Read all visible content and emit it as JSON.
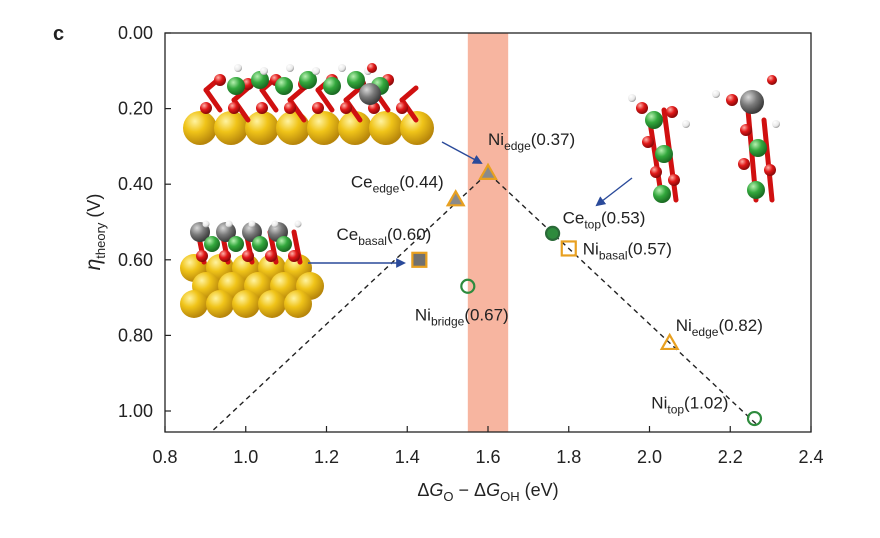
{
  "panel_label": "c",
  "chart_data": {
    "type": "scatter",
    "xlabel_parts": {
      "d1": "Δ",
      "g1": "G",
      "s1": "O",
      "minus": " − Δ",
      "g2": "G",
      "s2": "OH",
      "unit": " (eV)"
    },
    "ylabel_parts": {
      "eta": "η",
      "sub": "theory",
      "unit": " (V)"
    },
    "xlim": [
      0.8,
      2.4
    ],
    "ylim": [
      0.0,
      1.05
    ],
    "y_inverted": true,
    "xticks": [
      "0.8",
      "1.0",
      "1.2",
      "1.4",
      "1.6",
      "1.8",
      "2.0",
      "2.2",
      "2.4"
    ],
    "yticks": [
      "0.00",
      "0.20",
      "0.40",
      "0.60",
      "0.80",
      "1.00"
    ],
    "xtick_values": [
      0.8,
      1.0,
      1.2,
      1.4,
      1.6,
      1.8,
      2.0,
      2.2,
      2.4
    ],
    "ytick_values": [
      0.0,
      0.2,
      0.4,
      0.6,
      0.8,
      1.0
    ],
    "volcano_line": [
      [
        0.92,
        1.05
      ],
      [
        1.6,
        0.37
      ],
      [
        2.27,
        1.04
      ]
    ],
    "highlight_band": {
      "x": [
        1.55,
        1.65
      ],
      "color": "#f7b5a0"
    },
    "points": [
      {
        "label_main": "Ni",
        "label_sub": "edge",
        "value": "(0.37)",
        "x": 1.6,
        "y": 0.37,
        "marker": "triangle",
        "fill": "#8a8a8a",
        "stroke": "#e8a020",
        "label_dx": 0,
        "label_dy": -28,
        "anchor": "start"
      },
      {
        "label_main": "Ce",
        "label_sub": "edge",
        "value": "(0.44)",
        "x": 1.52,
        "y": 0.44,
        "marker": "triangle",
        "fill": "#8a8a8a",
        "stroke": "#e8a020",
        "label_dx": -12,
        "label_dy": -12,
        "anchor": "end"
      },
      {
        "label_main": "Ce",
        "label_sub": "basal",
        "value": "(0.60)",
        "x": 1.43,
        "y": 0.6,
        "marker": "square",
        "fill": "#707070",
        "stroke": "#e8a020",
        "label_dx": 12,
        "label_dy": -20,
        "anchor": "end"
      },
      {
        "label_main": "Ni",
        "label_sub": "bridge",
        "value": "(0.67)",
        "x": 1.55,
        "y": 0.67,
        "marker": "circle",
        "fill": "none",
        "stroke": "#2e8b3d",
        "label_dx": -6,
        "label_dy": 34,
        "anchor": "middle"
      },
      {
        "label_main": "Ce",
        "label_sub": "top",
        "value": "(0.53)",
        "x": 1.76,
        "y": 0.53,
        "marker": "circle",
        "fill": "#2e8b3d",
        "stroke": "#2a6a38",
        "label_dx": 10,
        "label_dy": -10,
        "anchor": "start"
      },
      {
        "label_main": "Ni",
        "label_sub": "basal",
        "value": "(0.57)",
        "x": 1.8,
        "y": 0.57,
        "marker": "square",
        "fill": "none",
        "stroke": "#e8a020",
        "label_dx": 14,
        "label_dy": 6,
        "anchor": "start"
      },
      {
        "label_main": "Ni",
        "label_sub": "edge",
        "value": "(0.82)",
        "x": 2.05,
        "y": 0.82,
        "marker": "triangle",
        "fill": "none",
        "stroke": "#e8a020",
        "label_dx": 6,
        "label_dy": -12,
        "anchor": "start"
      },
      {
        "label_main": "Ni",
        "label_sub": "top",
        "value": "(1.02)",
        "x": 2.26,
        "y": 1.02,
        "marker": "circle",
        "fill": "none",
        "stroke": "#2e8b3d",
        "label_dx": -26,
        "label_dy": -10,
        "anchor": "end"
      }
    ],
    "inset_images": [
      {
        "name": "inset-edge-structure",
        "depicts": "slab edge adsorption model"
      },
      {
        "name": "inset-basal-structure",
        "depicts": "basal plane adsorption model"
      },
      {
        "name": "inset-top-structure",
        "depicts": "top site adsorption models"
      }
    ]
  }
}
